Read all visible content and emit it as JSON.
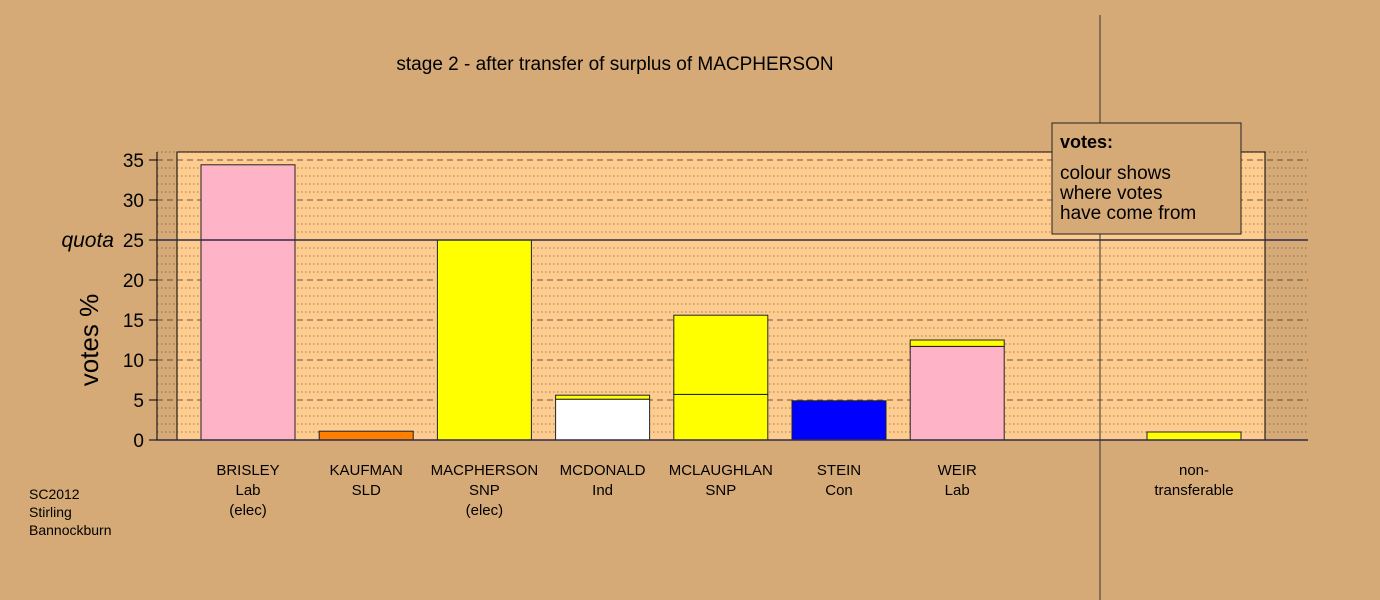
{
  "chart_data": {
    "type": "bar",
    "stacked": true,
    "title": "stage 2 - after transfer of surplus of MACPHERSON",
    "ylabel": "votes %",
    "ylim": [
      0,
      36
    ],
    "yticks": [
      0,
      5,
      10,
      15,
      20,
      25,
      30,
      35
    ],
    "quota": {
      "value": 25,
      "label": "quota"
    },
    "categories": [
      {
        "lines": [
          "BRISLEY",
          "Lab",
          "(elec)"
        ],
        "segments": [
          {
            "value": 34.4,
            "color": "#ffb3c6"
          }
        ]
      },
      {
        "lines": [
          "KAUFMAN",
          "SLD"
        ],
        "segments": [
          {
            "value": 1.1,
            "color": "#ff8000"
          }
        ]
      },
      {
        "lines": [
          "MACPHERSON",
          "SNP",
          "(elec)"
        ],
        "segments": [
          {
            "value": 25.0,
            "color": "#ffff00"
          }
        ]
      },
      {
        "lines": [
          "MCDONALD",
          "Ind"
        ],
        "segments": [
          {
            "value": 5.1,
            "color": "#ffffff"
          },
          {
            "value": 0.5,
            "color": "#ffff00"
          }
        ]
      },
      {
        "lines": [
          "MCLAUGHLAN",
          "SNP"
        ],
        "segments": [
          {
            "value": 5.7,
            "color": "#ffff00"
          },
          {
            "value": 9.9,
            "color": "#ffff00"
          }
        ]
      },
      {
        "lines": [
          "STEIN",
          "Con"
        ],
        "segments": [
          {
            "value": 4.9,
            "color": "#0000ff"
          }
        ]
      },
      {
        "lines": [
          "WEIR",
          "Lab"
        ],
        "segments": [
          {
            "value": 11.7,
            "color": "#ffb3c6"
          },
          {
            "value": 0.8,
            "color": "#ffff00"
          }
        ]
      }
    ],
    "non_transferable": {
      "lines": [
        "non-",
        "transferable"
      ],
      "value": 1.0,
      "color": "#ffff00"
    },
    "legend": {
      "title": "votes:",
      "lines": [
        "colour shows",
        "where votes",
        "have come from"
      ]
    }
  },
  "footer": {
    "lines": [
      "SC2012",
      "Stirling",
      "Bannockburn"
    ]
  }
}
